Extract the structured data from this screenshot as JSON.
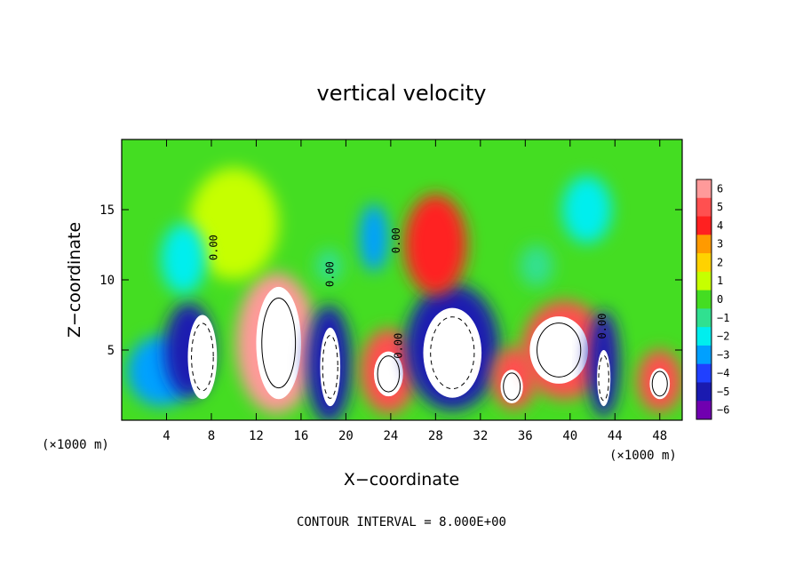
{
  "chart_data": {
    "type": "heatmap",
    "title": "vertical velocity",
    "xlabel": "X−coordinate",
    "ylabel": "Z−coordinate",
    "x_unit": "(×1000 m)",
    "x_unit_right": "(×1000 m)",
    "xlim": [
      0,
      50
    ],
    "ylim": [
      0,
      20
    ],
    "x_ticks": [
      4,
      8,
      12,
      16,
      20,
      24,
      28,
      32,
      36,
      40,
      44,
      48
    ],
    "x_tick_labels": [
      "4",
      "8",
      "12",
      "16",
      "20",
      "24",
      "28",
      "32",
      "36",
      "40",
      "44",
      "48"
    ],
    "y_ticks": [
      5,
      10,
      15
    ],
    "y_tick_labels": [
      "5",
      "10",
      "15"
    ],
    "contour_interval_text": "CONTOUR INTERVAL = 8.000E+00",
    "contour_labels": [
      {
        "text": "0.00",
        "x": 8.5,
        "z": 12.3
      },
      {
        "text": "0.00",
        "x": 18.9,
        "z": 10.4
      },
      {
        "text": "0.00",
        "x": 24.8,
        "z": 12.8
      },
      {
        "text": "0.00",
        "x": 25.0,
        "z": 5.3
      },
      {
        "text": "0.00",
        "x": 43.2,
        "z": 6.7
      }
    ],
    "colorbar": {
      "levels": [
        6,
        5,
        4,
        3,
        2,
        1,
        0,
        -1,
        -2,
        -3,
        -4,
        -5,
        -6
      ],
      "labels": [
        "6",
        "5",
        "4",
        "3",
        "2",
        "1",
        "0",
        "−1",
        "−2",
        "−3",
        "−4",
        "−5",
        "−6"
      ],
      "colors": [
        "#ff9a9a",
        "#ff5050",
        "#ff2020",
        "#ff9a00",
        "#ffd200",
        "#c6ff00",
        "#44dd22",
        "#30e090",
        "#00eeee",
        "#00a0ff",
        "#2040ff",
        "#1a1ab0",
        "#7000b0"
      ]
    },
    "cells": [
      {
        "x": 3.5,
        "z": 3.5,
        "rx": 3.0,
        "rz": 2.5,
        "value": -3.2
      },
      {
        "x": 6.0,
        "z": 5.0,
        "rx": 2.2,
        "rz": 3.4,
        "value": -5.0
      },
      {
        "x": 7.2,
        "z": 4.5,
        "rx": 1.3,
        "rz": 3.0,
        "value": -9.0
      },
      {
        "x": 13.8,
        "z": 5.5,
        "rx": 3.6,
        "rz": 5.0,
        "value": 5.5
      },
      {
        "x": 14.0,
        "z": 5.5,
        "rx": 2.0,
        "rz": 4.0,
        "value": 12.0
      },
      {
        "x": 18.5,
        "z": 4.0,
        "rx": 2.0,
        "rz": 4.2,
        "value": -5.2
      },
      {
        "x": 18.6,
        "z": 3.8,
        "rx": 0.9,
        "rz": 2.8,
        "value": -9.0
      },
      {
        "x": 23.8,
        "z": 3.5,
        "rx": 2.5,
        "rz": 3.0,
        "value": 5.0
      },
      {
        "x": 23.8,
        "z": 3.3,
        "rx": 1.3,
        "rz": 1.6,
        "value": 10.0
      },
      {
        "x": 29.5,
        "z": 5.2,
        "rx": 4.2,
        "rz": 4.5,
        "value": -5.0
      },
      {
        "x": 29.5,
        "z": 4.8,
        "rx": 2.6,
        "rz": 3.2,
        "value": -9.0
      },
      {
        "x": 28.0,
        "z": 12.5,
        "rx": 2.8,
        "rz": 3.6,
        "value": 3.8
      },
      {
        "x": 22.5,
        "z": 13.0,
        "rx": 1.3,
        "rz": 2.4,
        "value": -2.8
      },
      {
        "x": 10.0,
        "z": 14.0,
        "rx": 4.0,
        "rz": 4.0,
        "value": 0.6
      },
      {
        "x": 5.5,
        "z": 11.5,
        "rx": 2.0,
        "rz": 2.5,
        "value": -1.8
      },
      {
        "x": 35.0,
        "z": 3.0,
        "rx": 2.0,
        "rz": 2.2,
        "value": 5.0
      },
      {
        "x": 34.8,
        "z": 2.4,
        "rx": 1.0,
        "rz": 1.2,
        "value": 10.0
      },
      {
        "x": 39.5,
        "z": 5.0,
        "rx": 3.8,
        "rz": 3.5,
        "value": 5.0
      },
      {
        "x": 39.0,
        "z": 5.0,
        "rx": 2.6,
        "rz": 2.4,
        "value": 10.0
      },
      {
        "x": 43.0,
        "z": 4.0,
        "rx": 1.4,
        "rz": 3.8,
        "value": -5.0
      },
      {
        "x": 43.0,
        "z": 3.0,
        "rx": 0.6,
        "rz": 2.0,
        "value": -9.0
      },
      {
        "x": 48.0,
        "z": 2.8,
        "rx": 2.0,
        "rz": 2.2,
        "value": 4.8
      },
      {
        "x": 48.0,
        "z": 2.6,
        "rx": 0.9,
        "rz": 1.1,
        "value": 9.0
      },
      {
        "x": 41.5,
        "z": 15.0,
        "rx": 2.2,
        "rz": 2.4,
        "value": -1.8
      },
      {
        "x": 18.5,
        "z": 11.0,
        "rx": 1.2,
        "rz": 1.2,
        "value": -1.5
      },
      {
        "x": 37.0,
        "z": 11.0,
        "rx": 1.5,
        "rz": 1.5,
        "value": -1.5
      }
    ]
  }
}
